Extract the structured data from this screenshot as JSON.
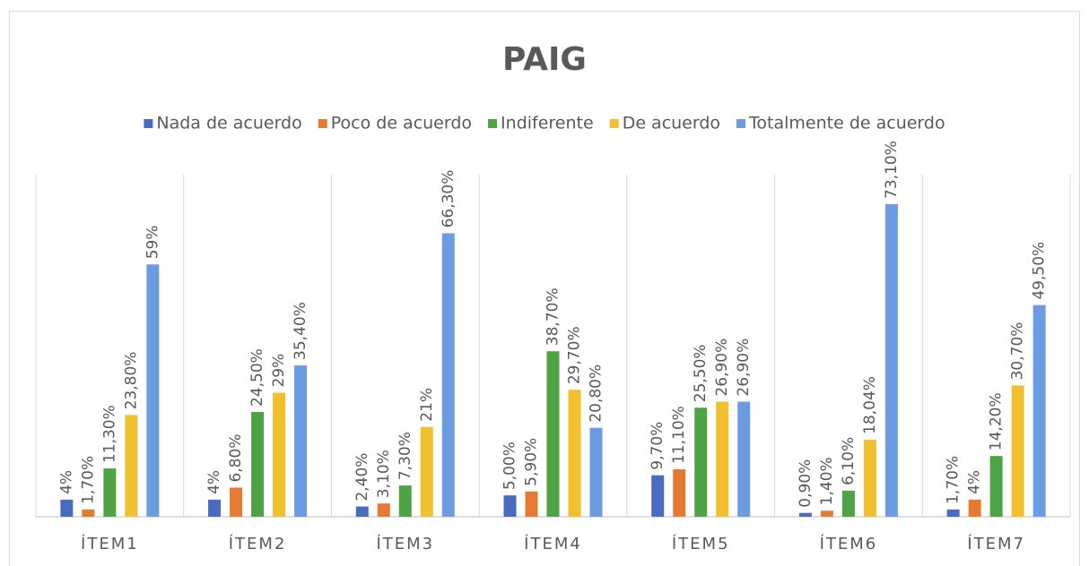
{
  "chart_data": {
    "type": "bar",
    "title": "PAIG",
    "categories": [
      "ÍTEM1",
      "ÍTEM2",
      "ÍTEM3",
      "ÍTEM4",
      "ÍTEM5",
      "ÍTEM6",
      "ÍTEM7"
    ],
    "series": [
      {
        "name": "Nada de acuerdo",
        "color": "#4a6cc0",
        "values": [
          4,
          4,
          2.4,
          5,
          9.7,
          0.9,
          1.7
        ],
        "value_labels": [
          "4%",
          "4%",
          "2,40%",
          "5,00%",
          "9,70%",
          "0,90%",
          "1,70%"
        ]
      },
      {
        "name": "Poco de acuerdo",
        "color": "#e57a32",
        "values": [
          1.7,
          6.8,
          3.1,
          5.9,
          11.1,
          1.4,
          4
        ],
        "value_labels": [
          "1,70%",
          "6,80%",
          "3,10%",
          "5,90%",
          "11,10%",
          "1,40%",
          "4%"
        ]
      },
      {
        "name": "Indiferente",
        "color": "#4ea445",
        "values": [
          11.3,
          24.5,
          7.3,
          38.7,
          25.5,
          6.1,
          14.2
        ],
        "value_labels": [
          "11,30%",
          "24,50%",
          "7,30%",
          "38,70%",
          "25,50%",
          "6,10%",
          "14,20%"
        ]
      },
      {
        "name": "De acuerdo",
        "color": "#f0c02e",
        "values": [
          23.8,
          29,
          21,
          29.7,
          26.9,
          18.04,
          30.7
        ],
        "value_labels": [
          "23,80%",
          "29%",
          "21%",
          "29,70%",
          "26,90%",
          "18,04%",
          "30,70%"
        ]
      },
      {
        "name": "Totalmente de acuerdo",
        "color": "#6b9be0",
        "values": [
          59,
          35.4,
          66.3,
          20.8,
          26.9,
          73.1,
          49.5
        ],
        "value_labels": [
          "59%",
          "35,40%",
          "66,30%",
          "20,80%",
          "26,90%",
          "73,10%",
          "49,50%"
        ]
      }
    ],
    "ylim": [
      0,
      80
    ],
    "legend": "top"
  }
}
